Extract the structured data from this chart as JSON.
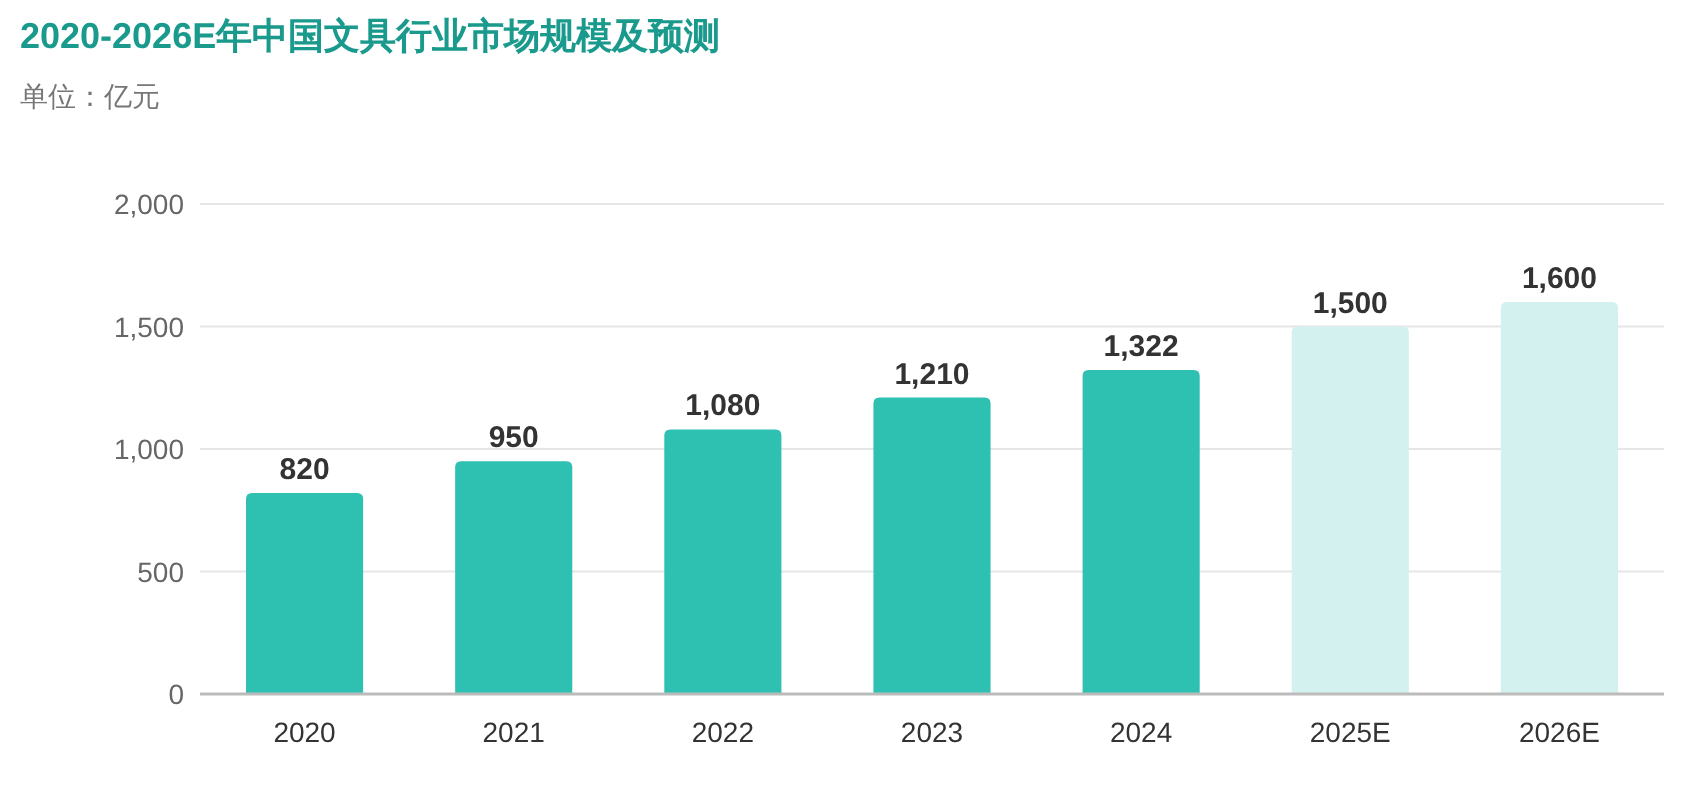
{
  "chart_data": {
    "type": "bar",
    "title": "2020-2026E年中国文具行业市场规模及预测",
    "subtitle": "单位：亿元",
    "categories": [
      "2020",
      "2021",
      "2022",
      "2023",
      "2024",
      "2025E",
      "2026E"
    ],
    "values": [
      820,
      950,
      1080,
      1210,
      1322,
      1500,
      1600
    ],
    "colors": [
      "#2ec0b1",
      "#2ec0b1",
      "#2ec0b1",
      "#2ec0b1",
      "#2ec0b1",
      "#d3f1ee",
      "#d3f1ee"
    ],
    "value_labels": [
      "820",
      "950",
      "1,080",
      "1,210",
      "1,322",
      "1,500",
      "1,600"
    ],
    "ylim": [
      0,
      2000
    ],
    "yticks": [
      0,
      {
        "value": 500,
        "label": "500"
      },
      {
        "value": 1000,
        "label": "1,000"
      },
      {
        "value": 1500,
        "label": "1,500"
      },
      {
        "value": 2000,
        "label": "2,000"
      }
    ],
    "grid": "y"
  }
}
